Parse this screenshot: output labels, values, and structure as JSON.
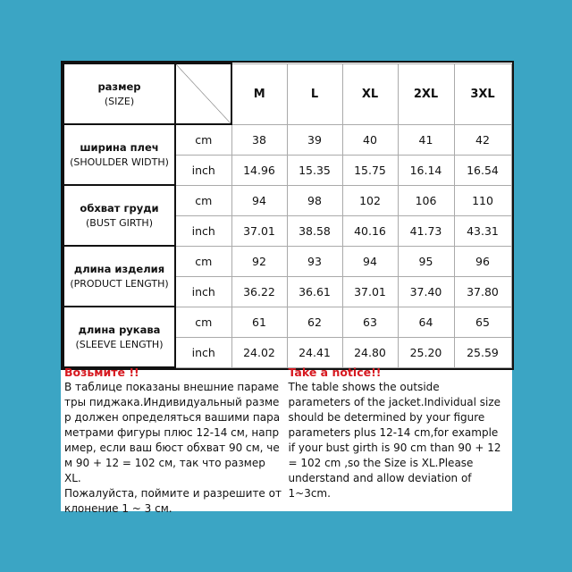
{
  "header": {
    "label_ru": "размер",
    "label_en": "(SIZE)",
    "sizes": [
      "M",
      "L",
      "XL",
      "2XL",
      "3XL"
    ]
  },
  "rows": [
    {
      "ru": "ширина плеч",
      "en": "(SHOULDER WIDTH)",
      "cm": [
        "38",
        "39",
        "40",
        "41",
        "42"
      ],
      "inch": [
        "14.96",
        "15.35",
        "15.75",
        "16.14",
        "16.54"
      ]
    },
    {
      "ru": "обхват груди",
      "en": "(BUST GIRTH)",
      "cm": [
        "94",
        "98",
        "102",
        "106",
        "110"
      ],
      "inch": [
        "37.01",
        "38.58",
        "40.16",
        "41.73",
        "43.31"
      ]
    },
    {
      "ru": "длина изделия",
      "en": "(PRODUCT LENGTH)",
      "cm": [
        "92",
        "93",
        "94",
        "95",
        "96"
      ],
      "inch": [
        "36.22",
        "36.61",
        "37.01",
        "37.40",
        "37.80"
      ]
    },
    {
      "ru": "длина рукава",
      "en": "(SLEEVE LENGTH)",
      "cm": [
        "61",
        "62",
        "63",
        "64",
        "65"
      ],
      "inch": [
        "24.02",
        "24.41",
        "24.80",
        "25.20",
        "25.59"
      ]
    }
  ],
  "units": {
    "cm": "cm",
    "inch": "inch"
  },
  "notice_ru": {
    "title": "Возьмите !!",
    "lines": [
      "В таблице показаны внешние параме",
      "тры пиджака.Индивидуальный разме",
      "р должен определяться вашими пара",
      "метрами фигуры плюс 12-14 см, напр",
      "имер, если ваш бюст обхват 90 см, че",
      "м 90 + 12 = 102 см, так что размер XL.",
      "Пожалуйста, поймите и разрешите от",
      "клонение 1 ~ 3 см."
    ]
  },
  "notice_en": {
    "title": "Take a notice!!",
    "lines": [
      "The table shows the outside",
      "parameters of the jacket.Individual size",
      "should be determined by your figure",
      "parameters plus 12-14 cm,for example",
      "if your bust girth is 90 cm than 90 + 12",
      "= 102 cm ,so the Size is XL.Please",
      "understand and allow deviation of",
      "1~3cm."
    ]
  },
  "colors": {
    "background": "#3ba5c4",
    "notice_title": "#d71920"
  }
}
